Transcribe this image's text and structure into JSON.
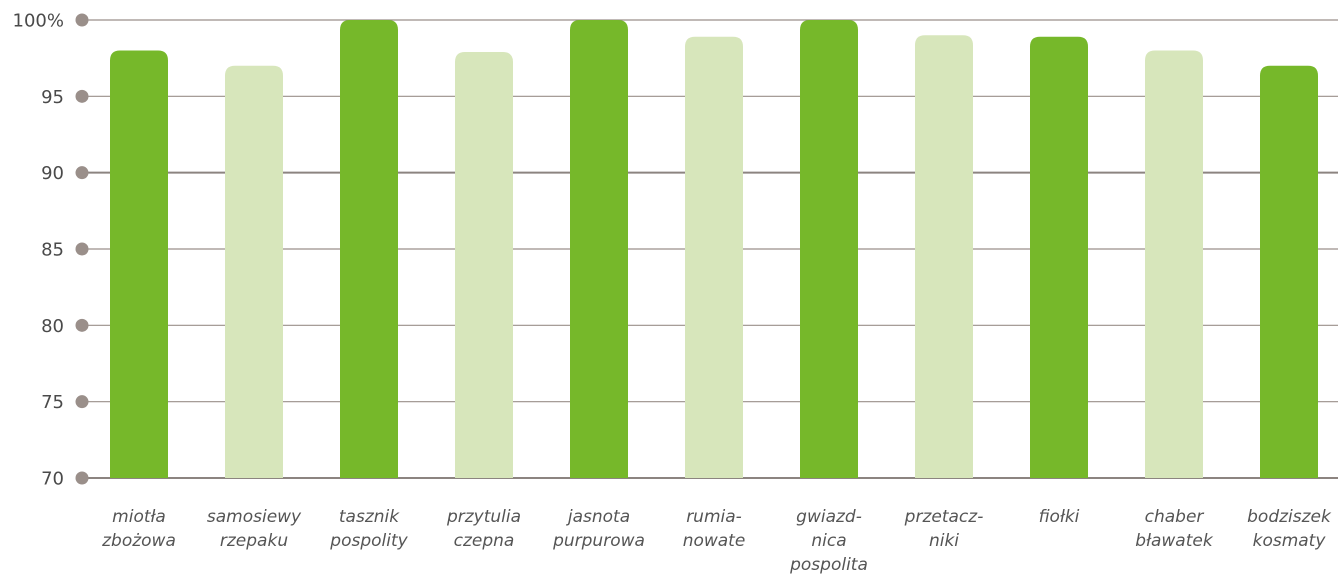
{
  "chart_data": {
    "type": "bar",
    "title": "",
    "xlabel": "",
    "ylabel": "",
    "ylim": [
      70,
      100
    ],
    "yticks": [
      {
        "value": 100,
        "label": "100%"
      },
      {
        "value": 95,
        "label": "95"
      },
      {
        "value": 90,
        "label": "90"
      },
      {
        "value": 85,
        "label": "85"
      },
      {
        "value": 80,
        "label": "80"
      },
      {
        "value": 75,
        "label": "75"
      },
      {
        "value": 70,
        "label": "70"
      }
    ],
    "categories": [
      {
        "lines": [
          "miotła",
          "zbożowa"
        ]
      },
      {
        "lines": [
          "samosiewy",
          "rzepaku"
        ]
      },
      {
        "lines": [
          "tasznik",
          "pospolity"
        ]
      },
      {
        "lines": [
          "przytulia",
          "czepna"
        ]
      },
      {
        "lines": [
          "jasnota",
          "purpurowa"
        ]
      },
      {
        "lines": [
          "rumia-",
          "nowate"
        ]
      },
      {
        "lines": [
          "gwiazd-",
          "nica",
          "pospolita"
        ]
      },
      {
        "lines": [
          "przetacz-",
          "niki"
        ]
      },
      {
        "lines": [
          "fiołki"
        ]
      },
      {
        "lines": [
          "chaber",
          "bławatek"
        ]
      },
      {
        "lines": [
          "bodziszek",
          "kosmaty"
        ]
      }
    ],
    "values": [
      98,
      97,
      100,
      97.9,
      100,
      98.9,
      100,
      99,
      98.9,
      98,
      97
    ],
    "bar_colors": [
      "#76b82a",
      "#d7e6bb",
      "#76b82a",
      "#d7e6bb",
      "#76b82a",
      "#d7e6bb",
      "#76b82a",
      "#d7e6bb",
      "#76b82a",
      "#d7e6bb",
      "#76b82a"
    ],
    "grid": true,
    "legend": "none",
    "colors": {
      "dark_bar": "#76b82a",
      "light_bar": "#d7e6bb",
      "grid_line": "#9a8f8a",
      "grid_line_major": "#8c8480",
      "tick_dot": "#9a8f8a"
    }
  }
}
